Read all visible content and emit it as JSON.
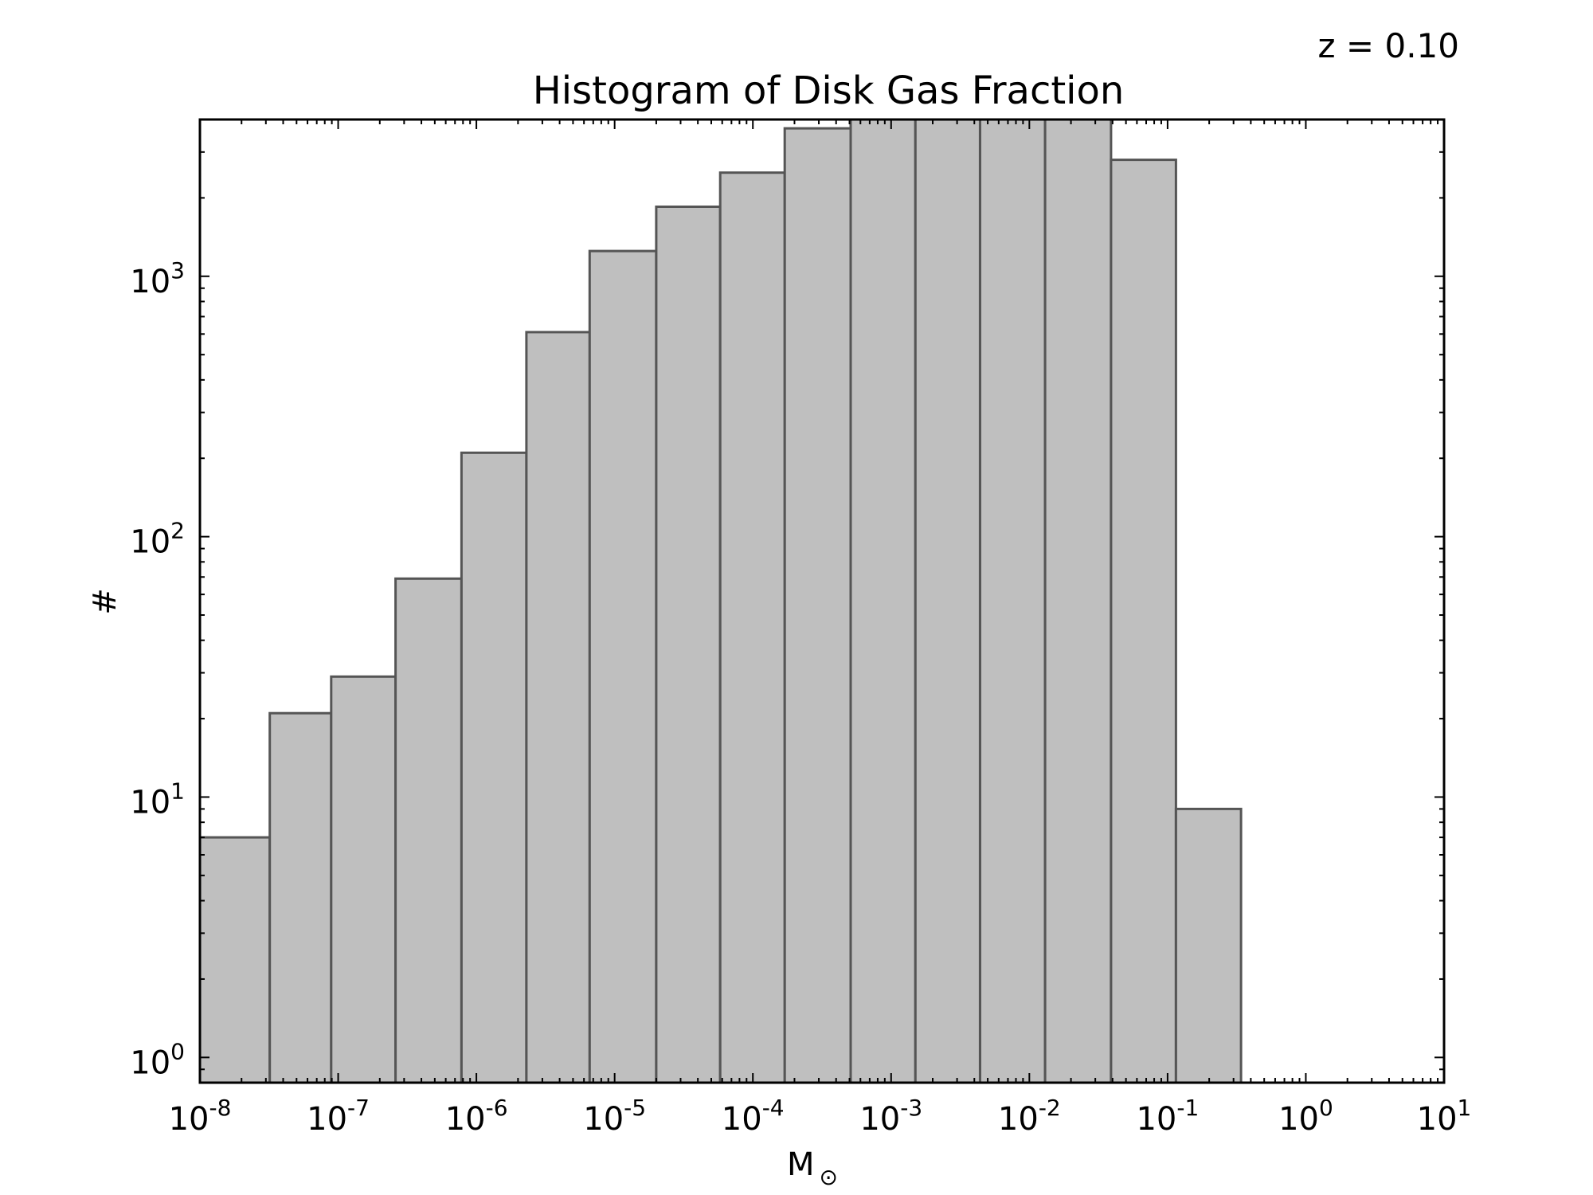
{
  "annotation": "z = 0.10",
  "chart_data": {
    "type": "bar",
    "title": "Histogram of Disk Gas Fraction",
    "xlabel": "M",
    "xlabel_subscript": "⊙",
    "ylabel": "#",
    "xscale": "log",
    "yscale": "log",
    "xlim": [
      1e-08,
      10
    ],
    "ylim": [
      0.8,
      4000
    ],
    "x_ticks": [
      {
        "base": "10",
        "exp": "-8",
        "value": 1e-08
      },
      {
        "base": "10",
        "exp": "-7",
        "value": 1e-07
      },
      {
        "base": "10",
        "exp": "-6",
        "value": 1e-06
      },
      {
        "base": "10",
        "exp": "-5",
        "value": 1e-05
      },
      {
        "base": "10",
        "exp": "-4",
        "value": 0.0001
      },
      {
        "base": "10",
        "exp": "-3",
        "value": 0.001
      },
      {
        "base": "10",
        "exp": "-2",
        "value": 0.01
      },
      {
        "base": "10",
        "exp": "-1",
        "value": 0.1
      },
      {
        "base": "10",
        "exp": "0",
        "value": 1
      },
      {
        "base": "10",
        "exp": "1",
        "value": 10
      }
    ],
    "y_ticks": [
      {
        "base": "10",
        "exp": "0",
        "value": 1
      },
      {
        "base": "10",
        "exp": "1",
        "value": 10
      },
      {
        "base": "10",
        "exp": "2",
        "value": 100
      },
      {
        "base": "10",
        "exp": "3",
        "value": 1000
      }
    ],
    "bins": [
      {
        "x0": 1e-08,
        "x1": 3.2e-08,
        "count": 7
      },
      {
        "x0": 3.2e-08,
        "x1": 8.9e-08,
        "count": 21
      },
      {
        "x0": 8.9e-08,
        "x1": 2.6e-07,
        "count": 29
      },
      {
        "x0": 2.6e-07,
        "x1": 7.8e-07,
        "count": 69
      },
      {
        "x0": 7.8e-07,
        "x1": 2.3e-06,
        "count": 210
      },
      {
        "x0": 2.3e-06,
        "x1": 6.6e-06,
        "count": 610
      },
      {
        "x0": 6.6e-06,
        "x1": 2e-05,
        "count": 1250
      },
      {
        "x0": 2e-05,
        "x1": 5.8e-05,
        "count": 1850
      },
      {
        "x0": 5.8e-05,
        "x1": 0.00017,
        "count": 2500
      },
      {
        "x0": 0.00017,
        "x1": 0.00051,
        "count": 3700
      },
      {
        "x0": 0.00051,
        "x1": 0.0015,
        "count": 4000
      },
      {
        "x0": 0.0015,
        "x1": 0.0044,
        "count": 4000
      },
      {
        "x0": 0.0044,
        "x1": 0.013,
        "count": 4000
      },
      {
        "x0": 0.013,
        "x1": 0.039,
        "count": 4000
      },
      {
        "x0": 0.039,
        "x1": 0.115,
        "count": 2800
      },
      {
        "x0": 0.115,
        "x1": 0.34,
        "count": 9
      }
    ],
    "bar_color": "#bfbfbf",
    "edge_color": "#555555",
    "grid": false
  }
}
